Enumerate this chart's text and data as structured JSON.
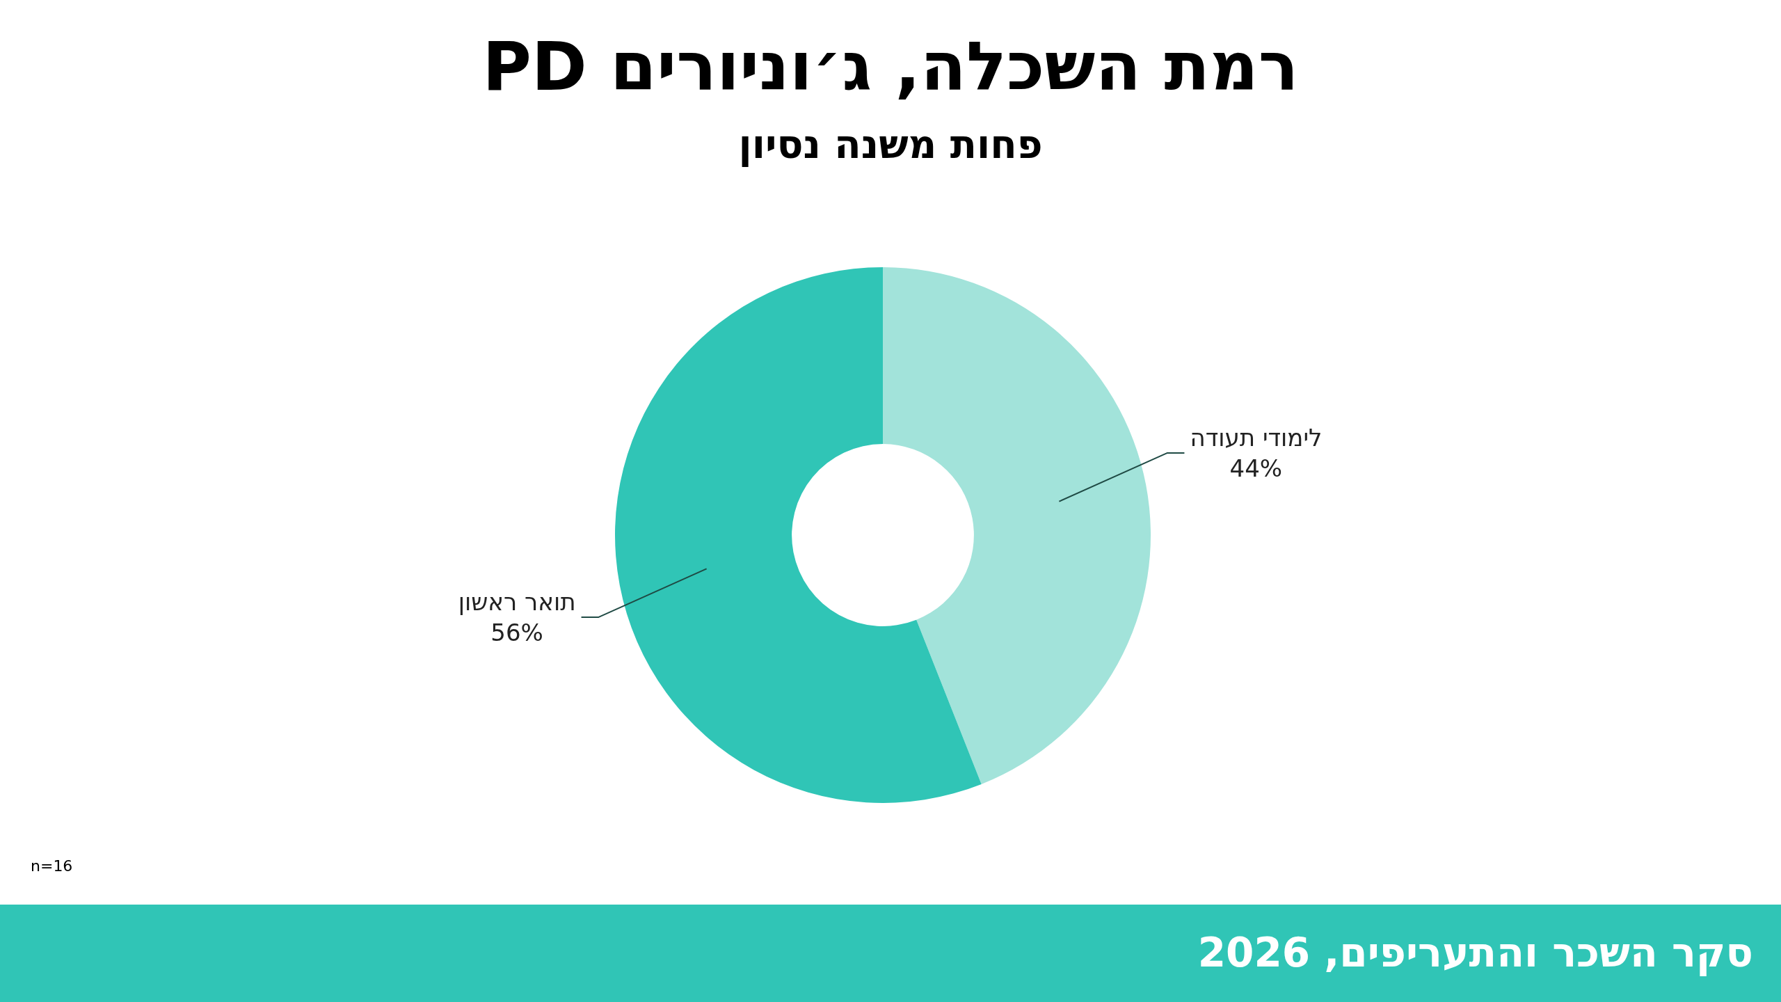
{
  "chart_data": {
    "type": "donut",
    "title": "רמת השכלה, ג׳וניורים PD",
    "subtitle": "פחות משנה נסיון",
    "categories": [
      "לימודי תעודה",
      "תואר ראשון"
    ],
    "values": [
      44,
      56
    ],
    "colors": [
      "#a2e3da",
      "#30c5b6"
    ],
    "value_labels": [
      "44%",
      "56%"
    ],
    "annotations": [
      "n=16",
      "סקר השכר והתעריפים, 2026"
    ],
    "legend": false
  }
}
